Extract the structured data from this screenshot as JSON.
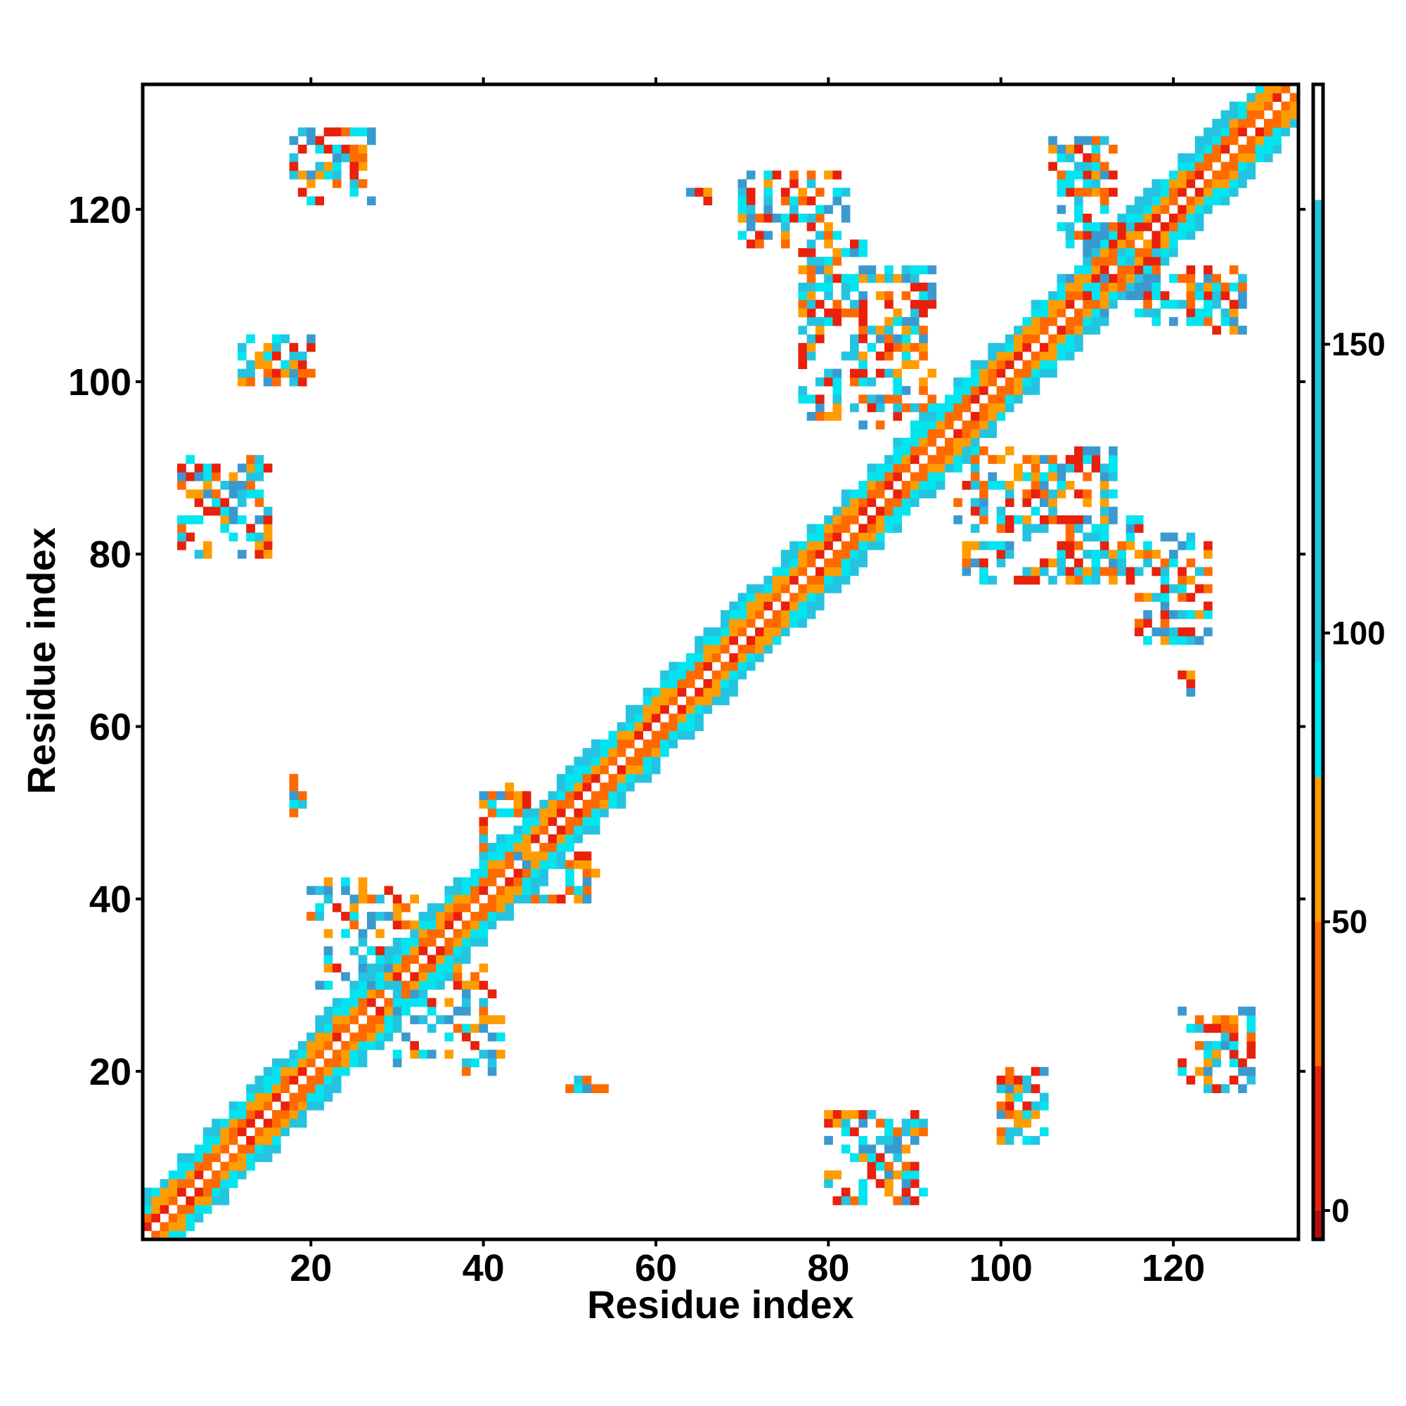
{
  "chart_data": {
    "type": "heatmap",
    "title": "",
    "xlabel": "Residue index",
    "ylabel": "Residue index",
    "xlim": [
      1,
      134
    ],
    "ylim": [
      1,
      134
    ],
    "x_ticks": [
      20,
      40,
      60,
      80,
      100,
      120
    ],
    "y_ticks": [
      20,
      40,
      60,
      80,
      100,
      120
    ],
    "grid": false,
    "legend": "colorbar right",
    "colorbar": {
      "range": [
        -5,
        195
      ],
      "ticks": [
        0,
        50,
        100,
        150
      ],
      "bands": [
        {
          "from": -5,
          "to": 0,
          "color": "#b01010"
        },
        {
          "from": 0,
          "to": 25,
          "color": "#e8200c"
        },
        {
          "from": 25,
          "to": 50,
          "color": "#ff6a00"
        },
        {
          "from": 50,
          "to": 75,
          "color": "#ff9d00"
        },
        {
          "from": 75,
          "to": 95,
          "color": "#00e5f0"
        },
        {
          "from": 95,
          "to": 175,
          "color": "#24c4e0"
        },
        {
          "from": 175,
          "to": 195,
          "color": "#ffffff"
        }
      ]
    },
    "palette": {
      "red": "#e8200c",
      "dark_orange": "#ff6a00",
      "orange": "#ff9d00",
      "cyan": "#00e5f0",
      "light_blue": "#24c4e0",
      "steel_blue": "#3a9ad0"
    },
    "diagonal_band": {
      "from": 1,
      "to": 134,
      "half_width": 5
    },
    "clusters": [
      {
        "x": [
          18,
          27
        ],
        "y": [
          121,
          129
        ]
      },
      {
        "x": [
          12,
          20
        ],
        "y": [
          100,
          105
        ]
      },
      {
        "x": [
          5,
          15
        ],
        "y": [
          80,
          90
        ]
      },
      {
        "x": [
          18,
          19
        ],
        "y": [
          51,
          55
        ]
      },
      {
        "x": [
          40,
          44
        ],
        "y": [
          49,
          53
        ]
      },
      {
        "x": [
          20,
          32
        ],
        "y": [
          37,
          42
        ]
      },
      {
        "x": [
          30,
          42
        ],
        "y": [
          21,
          30
        ]
      },
      {
        "x": [
          50,
          55
        ],
        "y": [
          18,
          18
        ]
      },
      {
        "x": [
          45,
          52
        ],
        "y": [
          40,
          45
        ]
      },
      {
        "x": [
          64,
          68
        ],
        "y": [
          122,
          122
        ]
      },
      {
        "x": [
          70,
          82
        ],
        "y": [
          117,
          124
        ]
      },
      {
        "x": [
          77,
          92
        ],
        "y": [
          96,
          113
        ]
      },
      {
        "x": [
          106,
          113
        ],
        "y": [
          122,
          128
        ]
      },
      {
        "x": [
          110,
          118
        ],
        "y": [
          108,
          118
        ]
      },
      {
        "x": [
          118,
          129
        ],
        "y": [
          107,
          113
        ]
      },
      {
        "x": [
          95,
          110
        ],
        "y": [
          84,
          92
        ]
      },
      {
        "x": [
          108,
          116
        ],
        "y": [
          77,
          84
        ]
      },
      {
        "x": [
          116,
          124
        ],
        "y": [
          70,
          81
        ]
      },
      {
        "x": [
          121,
          122
        ],
        "y": [
          65,
          66
        ]
      },
      {
        "x": [
          124,
          129
        ],
        "y": [
          18,
          26
        ]
      },
      {
        "x": [
          100,
          105
        ],
        "y": [
          12,
          19
        ]
      },
      {
        "x": [
          80,
          91
        ],
        "y": [
          5,
          15
        ]
      }
    ]
  }
}
